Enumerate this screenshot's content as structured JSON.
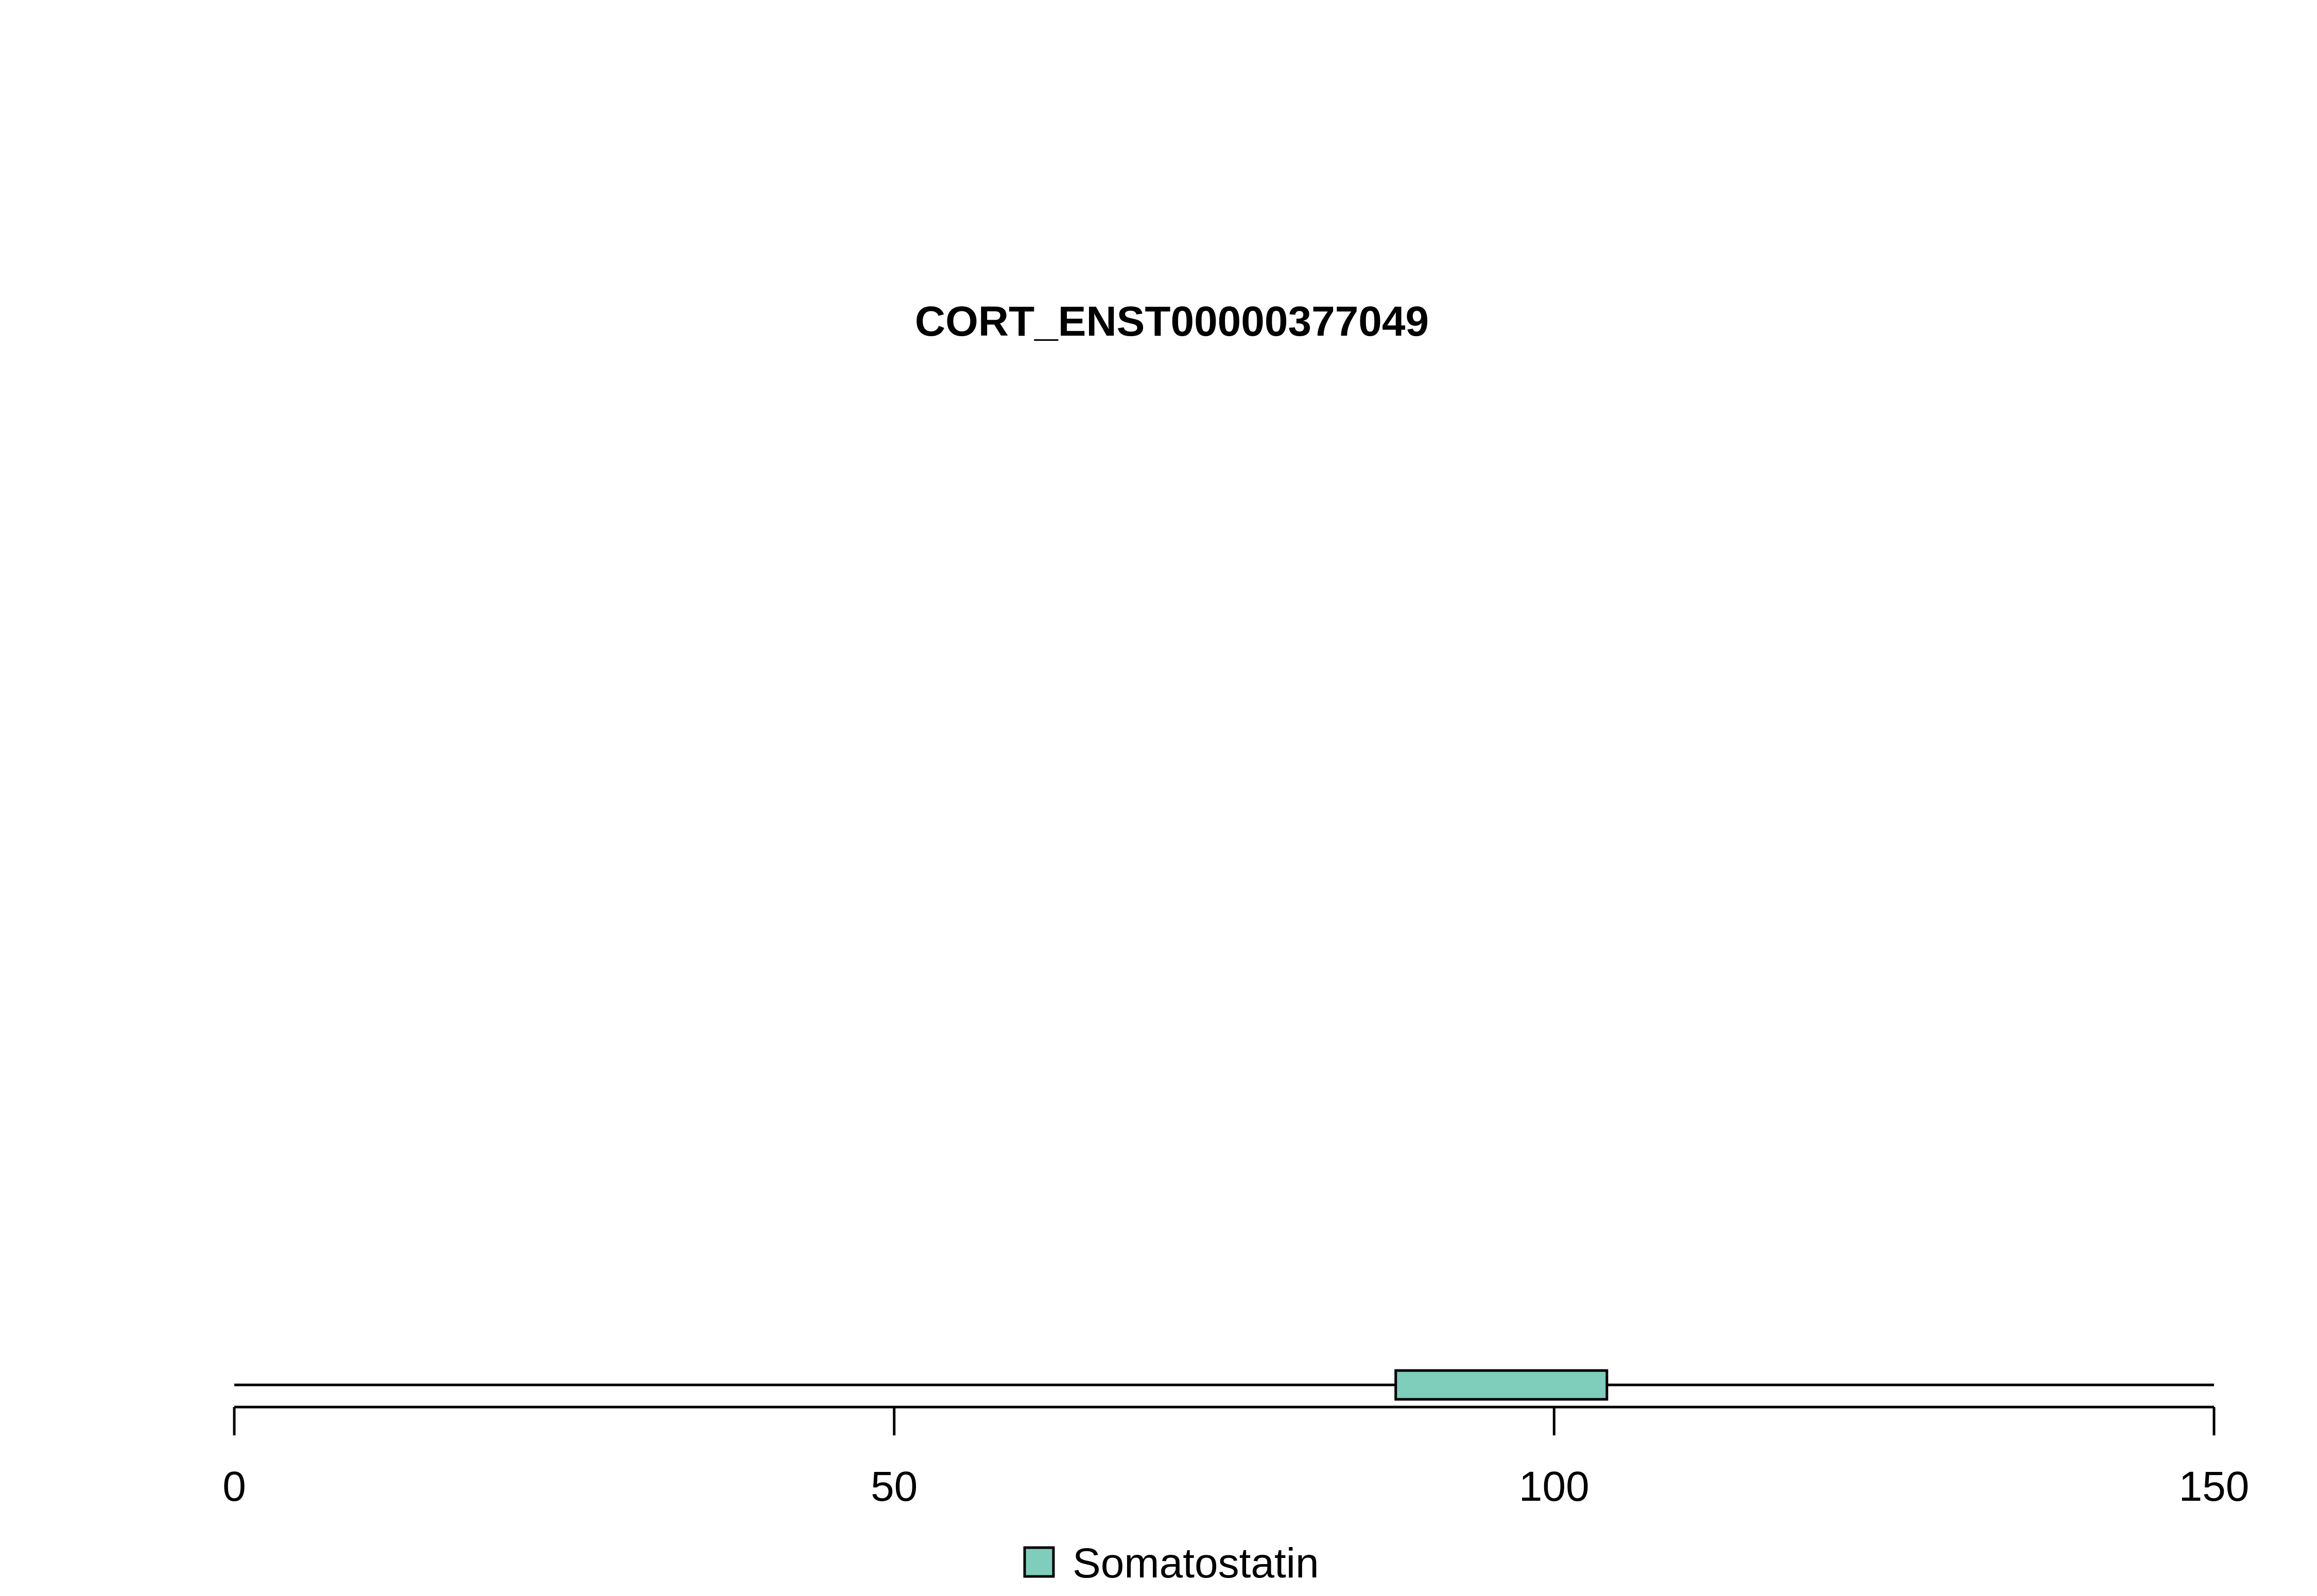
{
  "chart_data": {
    "type": "bar",
    "title": "CORT_ENST00000377049",
    "protein_length": 150,
    "xlim": [
      0,
      150
    ],
    "x_ticks": [
      0,
      50,
      100,
      150
    ],
    "x_tick_labels": [
      "0",
      "50",
      "100",
      "150"
    ],
    "domains": [
      {
        "name": "Somatostatin",
        "start": 88,
        "end": 104,
        "color": "#7fcdbb"
      }
    ],
    "legend": {
      "position": "bottom-center",
      "entries": [
        {
          "label": "Somatostatin",
          "color": "#7fcdbb"
        }
      ]
    },
    "grid": false
  }
}
